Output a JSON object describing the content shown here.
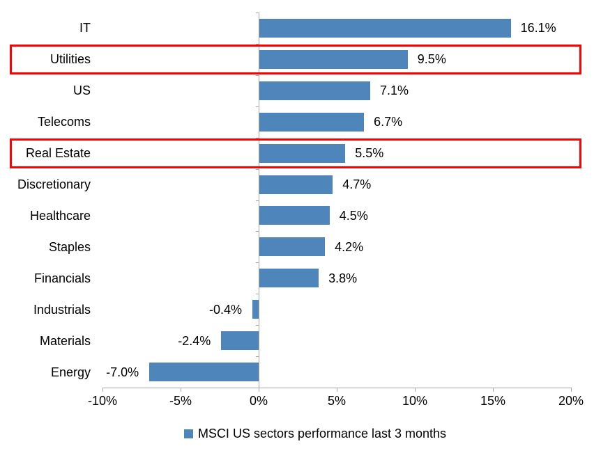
{
  "chart_data": {
    "type": "bar",
    "orientation": "horizontal",
    "title": "",
    "categories": [
      "IT",
      "Utilities",
      "US",
      "Telecoms",
      "Real Estate",
      "Discretionary",
      "Healthcare",
      "Staples",
      "Financials",
      "Industrials",
      "Materials",
      "Energy"
    ],
    "values": [
      16.1,
      9.5,
      7.1,
      6.7,
      5.5,
      4.7,
      4.5,
      4.2,
      3.8,
      -0.4,
      -2.4,
      -7.0
    ],
    "value_labels": [
      "16.1%",
      "9.5%",
      "7.1%",
      "6.7%",
      "5.5%",
      "4.7%",
      "4.5%",
      "4.2%",
      "3.8%",
      "-0.4%",
      "-2.4%",
      "-7.0%"
    ],
    "xlim": [
      -10,
      20
    ],
    "x_ticks": [
      -10,
      -5,
      0,
      5,
      10,
      15,
      20
    ],
    "x_tick_labels": [
      "-10%",
      "-5%",
      "0%",
      "5%",
      "10%",
      "15%",
      "20%"
    ],
    "grid": false,
    "legend_position": "bottom",
    "legend": [
      {
        "label": "MSCI US sectors performance last 3 months",
        "color": "#4e86bc"
      }
    ],
    "highlighted_categories": [
      "Utilities",
      "Real Estate"
    ],
    "colors": {
      "bar": "#4e86bc",
      "highlight_box": "#ff0000",
      "axis": "#a6a6a6",
      "text": "#000000"
    }
  }
}
